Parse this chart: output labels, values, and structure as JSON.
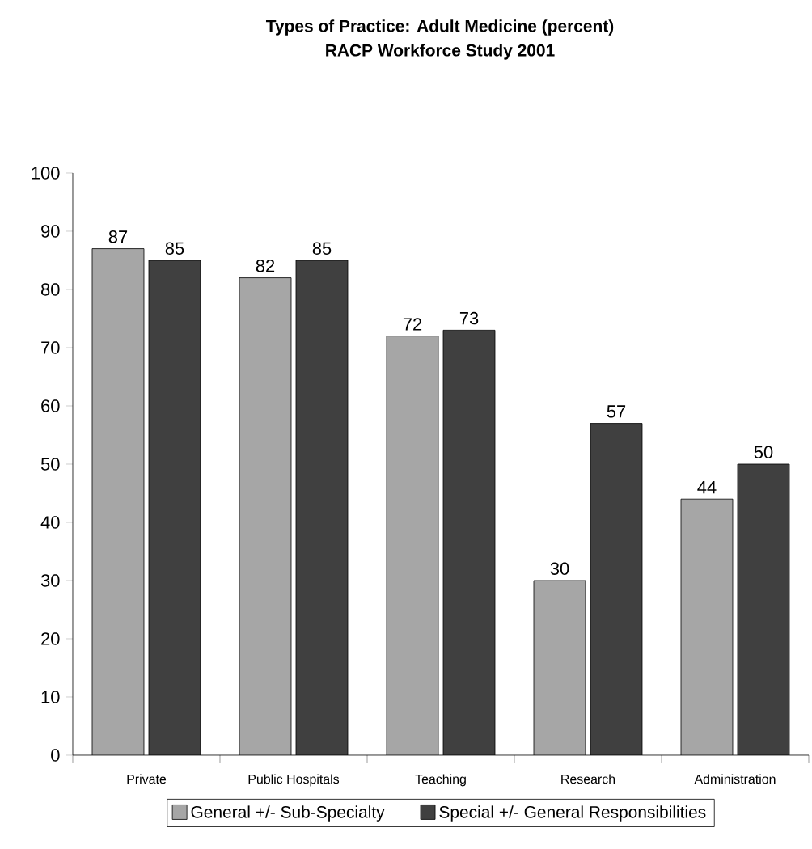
{
  "chart_data": {
    "type": "bar",
    "title": "Types of Practice: Adult Medicine (percent)",
    "subtitle": "RACP Workforce Study 2001",
    "categories": [
      "Private",
      "Public Hospitals",
      "Teaching",
      "Research",
      "Administration"
    ],
    "series": [
      {
        "name": "General +/- Sub-Specialty",
        "color": "#a6a6a6",
        "values": [
          87,
          82,
          72,
          30,
          44
        ]
      },
      {
        "name": "Special +/- General Responsibilities",
        "color": "#404040",
        "values": [
          85,
          85,
          73,
          57,
          50
        ]
      }
    ],
    "ylim": [
      0,
      100
    ],
    "yticks": [
      0,
      10,
      20,
      30,
      40,
      50,
      60,
      70,
      80,
      90,
      100
    ],
    "data_labels": true,
    "legend": "bottom",
    "grid": false
  }
}
